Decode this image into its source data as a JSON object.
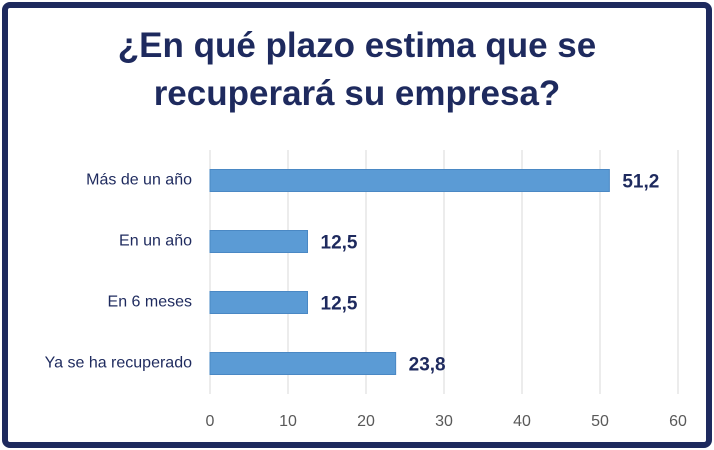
{
  "chart_data": {
    "type": "bar",
    "orientation": "horizontal",
    "title": "¿En qué plazo estima que se recuperará su empresa?",
    "categories": [
      "Más de un año",
      "En un año",
      "En 6 meses",
      "Ya se ha recuperado"
    ],
    "values": [
      51.2,
      12.5,
      12.5,
      23.8
    ],
    "value_labels": [
      "51,2",
      "12,5",
      "12,5",
      "23,8"
    ],
    "color": "#5b9bd5",
    "xlim": [
      0,
      60
    ],
    "xticks": [
      0,
      10,
      20,
      30,
      40,
      50,
      60
    ],
    "grid": true
  }
}
